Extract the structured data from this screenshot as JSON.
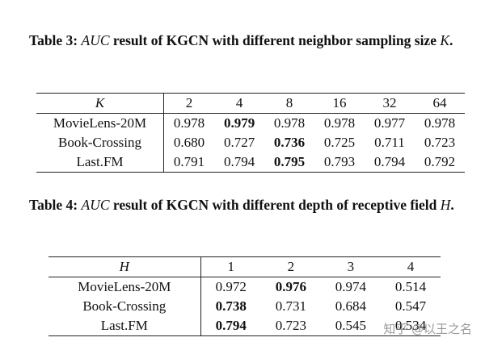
{
  "tables": [
    {
      "caption": [
        "Table 3: ",
        "AUC",
        " result of KGCN with different neighbor sampling size ",
        "K",
        "."
      ],
      "header": [
        "K",
        "2",
        "4",
        "8",
        "16",
        "32",
        "64"
      ],
      "rows": [
        [
          "MovieLens-20M",
          "0.978",
          "0.979",
          "0.978",
          "0.978",
          "0.977",
          "0.978"
        ],
        [
          "Book-Crossing",
          "0.680",
          "0.727",
          "0.736",
          "0.725",
          "0.711",
          "0.723"
        ],
        [
          "Last.FM",
          "0.791",
          "0.794",
          "0.795",
          "0.793",
          "0.794",
          "0.792"
        ]
      ],
      "bold": [
        [
          0,
          2
        ],
        [
          1,
          3
        ],
        [
          2,
          3
        ]
      ]
    },
    {
      "caption": [
        "Table 4: ",
        "AUC",
        " result of KGCN with different depth of receptive field ",
        "H",
        "."
      ],
      "header": [
        "H",
        "1",
        "2",
        "3",
        "4"
      ],
      "rows": [
        [
          "MovieLens-20M",
          "0.972",
          "0.976",
          "0.974",
          "0.514"
        ],
        [
          "Book-Crossing",
          "0.738",
          "0.731",
          "0.684",
          "0.547"
        ],
        [
          "Last.FM",
          "0.794",
          "0.723",
          "0.545",
          "0.534"
        ]
      ],
      "bold": [
        [
          0,
          2
        ],
        [
          1,
          1
        ],
        [
          2,
          1
        ]
      ]
    }
  ],
  "watermark": "知乎 @以王之名"
}
